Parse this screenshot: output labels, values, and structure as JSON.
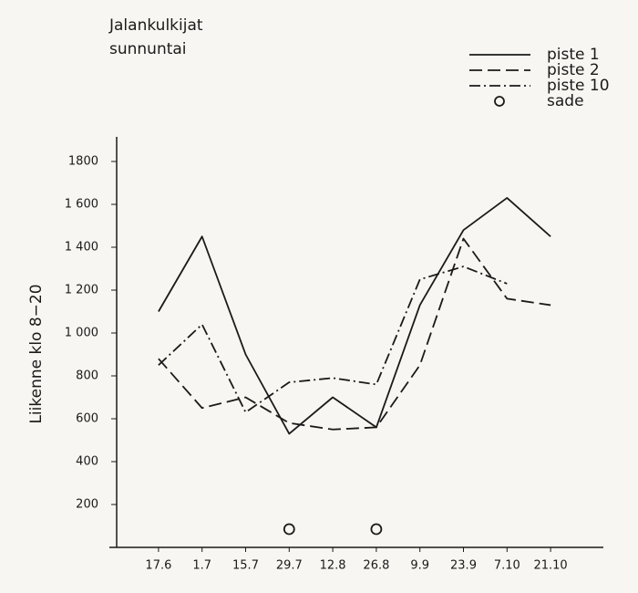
{
  "chart_data": {
    "type": "line",
    "title": "Jalankulkijat",
    "subtitle": "sunnuntai",
    "y_label": "Liikenne klo 8−20",
    "categories": [
      "17.6",
      "1.7",
      "15.7",
      "29.7",
      "12.8",
      "26.8",
      "9.9",
      "23.9",
      "7.10",
      "21.10"
    ],
    "series": [
      {
        "name": "piste 1",
        "color": "#1a1a1a",
        "linestyle": "solid",
        "values": [
          1100,
          1450,
          900,
          530,
          700,
          560,
          1130,
          1480,
          1630,
          1450
        ]
      },
      {
        "name": "piste 2",
        "color": "#1a1a1a",
        "linestyle": "dashed",
        "values": [
          880,
          650,
          700,
          580,
          550,
          560,
          850,
          1440,
          1160,
          1130
        ]
      },
      {
        "name": "piste 10",
        "color": "#1a1a1a",
        "linestyle": "dashdot",
        "values": [
          850,
          1040,
          630,
          770,
          790,
          760,
          1250,
          1310,
          1230,
          null
        ]
      },
      {
        "name": "sade",
        "color": "#1a1a1a",
        "linestyle": "none",
        "marker": "circle",
        "values": [
          null,
          null,
          null,
          85,
          null,
          85,
          null,
          null,
          null,
          null
        ]
      }
    ],
    "ylim": [
      0,
      1900
    ],
    "yticks": [
      200,
      400,
      600,
      800,
      {
        "value": 1000,
        "label": "1 000"
      },
      {
        "value": 1200,
        "label": "1 200"
      },
      {
        "value": 1400,
        "label": "1 400"
      },
      {
        "value": 1600,
        "label": "1 600"
      },
      1800
    ],
    "legend": "upper right"
  }
}
